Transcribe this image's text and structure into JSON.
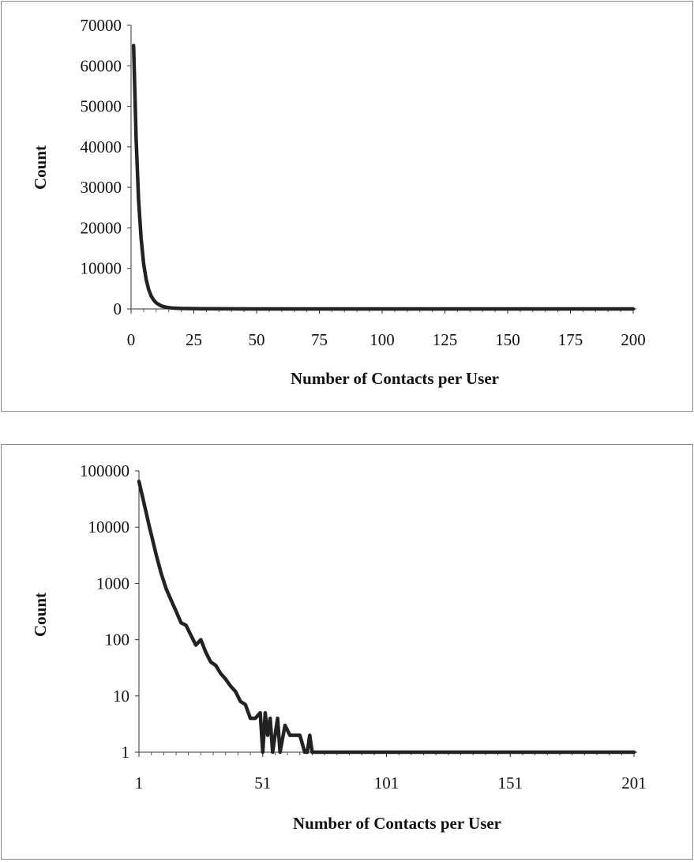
{
  "chart_data": [
    {
      "type": "line",
      "xlabel": "Number of Contacts per User",
      "ylabel": "Count",
      "xlim": [
        0,
        200
      ],
      "ylim": [
        0,
        70000
      ],
      "x_ticks": [
        "0",
        "25",
        "50",
        "75",
        "100",
        "125",
        "150",
        "175",
        "200"
      ],
      "y_ticks": [
        "0",
        "10000",
        "20000",
        "30000",
        "40000",
        "50000",
        "60000",
        "70000"
      ],
      "y_scale": "linear",
      "grid": false,
      "series": [
        {
          "x": [
            1,
            2,
            3,
            4,
            5,
            6,
            7,
            8,
            9,
            10,
            12,
            14,
            16,
            18,
            20,
            25,
            30,
            40,
            50,
            60,
            80,
            100,
            150,
            200
          ],
          "y": [
            65000,
            42000,
            27000,
            17500,
            11200,
            7300,
            4800,
            3200,
            2200,
            1500,
            750,
            400,
            250,
            170,
            120,
            80,
            45,
            18,
            5,
            2,
            1,
            1,
            1,
            1
          ]
        }
      ]
    },
    {
      "type": "line",
      "xlabel": "Number of Contacts per User",
      "ylabel": "Count",
      "xlim": [
        1,
        201
      ],
      "ylim": [
        1,
        100000
      ],
      "x_ticks": [
        "1",
        "51",
        "101",
        "151",
        "201"
      ],
      "y_ticks": [
        "1",
        "10",
        "100",
        "1000",
        "10000",
        "100000"
      ],
      "y_scale": "log",
      "grid": false,
      "series": [
        {
          "x": [
            1,
            2,
            3,
            4,
            5,
            6,
            8,
            10,
            12,
            14,
            16,
            18,
            20,
            22,
            24,
            26,
            28,
            30,
            32,
            34,
            36,
            38,
            40,
            42,
            44,
            46,
            48,
            50,
            51,
            52,
            53,
            54,
            55,
            56,
            57,
            58,
            60,
            62,
            64,
            66,
            68,
            69,
            70,
            71,
            80,
            100,
            150,
            201
          ],
          "y": [
            65000,
            42000,
            27000,
            17500,
            11200,
            7300,
            3200,
            1500,
            800,
            500,
            320,
            200,
            180,
            120,
            80,
            100,
            60,
            40,
            35,
            25,
            20,
            15,
            12,
            8,
            7,
            4,
            4,
            5,
            1,
            5,
            2,
            4,
            1,
            2,
            4,
            1,
            3,
            2,
            2,
            2,
            1,
            1,
            2,
            1,
            1,
            1,
            1,
            1
          ]
        }
      ]
    }
  ]
}
